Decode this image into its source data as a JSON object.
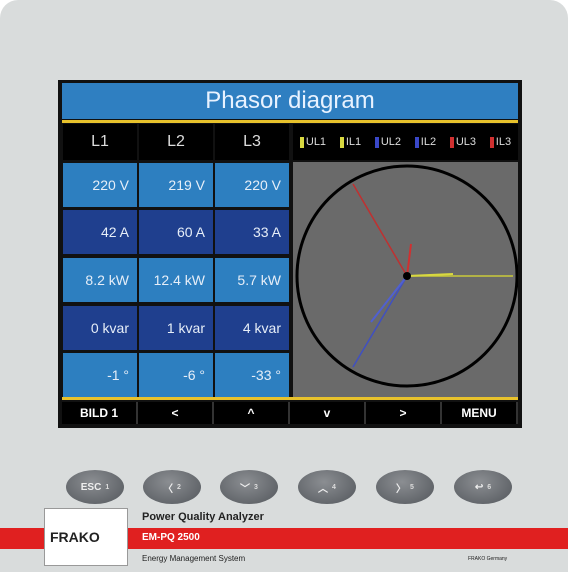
{
  "title": "Phasor diagram",
  "columns": [
    "L1",
    "L2",
    "L3"
  ],
  "legend": [
    "UL1",
    "IL1",
    "UL2",
    "IL2",
    "UL3",
    "IL3"
  ],
  "rows": [
    [
      "220 V",
      "219 V",
      "220 V"
    ],
    [
      "42 A",
      "60 A",
      "33 A"
    ],
    [
      "8.2 kW",
      "12.4 kW",
      "5.7 kW"
    ],
    [
      "0 kvar",
      "1 kvar",
      "4 kvar"
    ],
    [
      "-1 °",
      "-6 °",
      "-33 °"
    ]
  ],
  "softkeys": [
    "BILD 1",
    "<",
    "^",
    "v",
    ">",
    "MENU"
  ],
  "buttons": [
    {
      "label": "ESC",
      "number": "1"
    },
    {
      "label": "〈",
      "number": "2"
    },
    {
      "label": "﹀",
      "number": "3"
    },
    {
      "label": "︿",
      "number": "4"
    },
    {
      "label": "〉",
      "number": "5"
    },
    {
      "label": "↩",
      "number": "6"
    }
  ],
  "brand": {
    "logo": "FRAKO",
    "product_line": "Power Quality Analyzer",
    "model": "EM-PQ 2500",
    "system": "Energy Management System",
    "origin": "FRAKO Germany"
  }
}
